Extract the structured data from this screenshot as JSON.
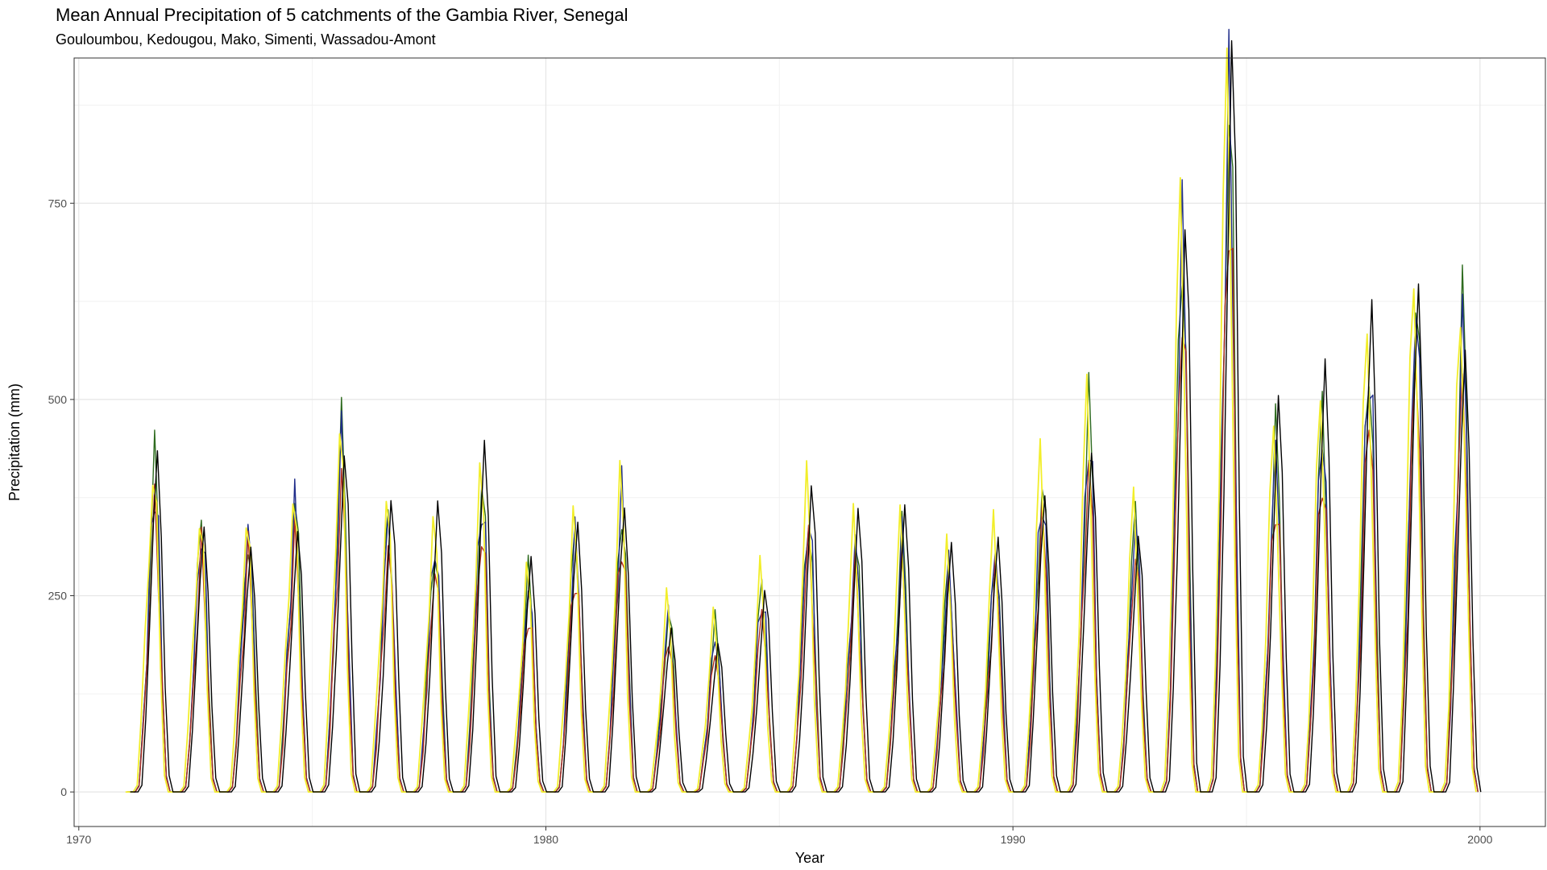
{
  "chart_data": {
    "type": "line",
    "title": "Mean Annual Precipitation of 5 catchments of the Gambia River, Senegal",
    "subtitle": "Gouloumbou, Kedougou, Mako, Simenti, Wassadou-Amont",
    "xlabel": "Year",
    "ylabel": "Precipitation (mm)",
    "xlim": [
      1969.9,
      2001.4
    ],
    "ylim": [
      -44,
      935
    ],
    "x_ticks": [
      1970,
      1980,
      1990,
      2000
    ],
    "x_tick_labels": [
      "1970",
      "1980",
      "1990",
      "2000"
    ],
    "y_ticks": [
      0,
      250,
      500,
      750
    ],
    "y_tick_labels": [
      "0",
      "250",
      "500",
      "750"
    ],
    "grid": true,
    "legend": "none",
    "series_colors": [
      "#2e6b1f",
      "#1f2c8a",
      "#b03020",
      "#f2ee2a",
      "#000000"
    ],
    "annual_peaks": [
      [
        1971,
        420
      ],
      [
        1972,
        355
      ],
      [
        1973,
        350
      ],
      [
        1974,
        375
      ],
      [
        1975,
        458
      ],
      [
        1976,
        365
      ],
      [
        1977,
        340
      ],
      [
        1978,
        400
      ],
      [
        1979,
        275
      ],
      [
        1980,
        338
      ],
      [
        1981,
        387
      ],
      [
        1982,
        236
      ],
      [
        1983,
        212
      ],
      [
        1984,
        270
      ],
      [
        1985,
        377
      ],
      [
        1986,
        328
      ],
      [
        1987,
        327
      ],
      [
        1988,
        295
      ],
      [
        1989,
        325
      ],
      [
        1990,
        410
      ],
      [
        1991,
        490
      ],
      [
        1992,
        362
      ],
      [
        1993,
        740
      ],
      [
        1994,
        910
      ],
      [
        1995,
        455
      ],
      [
        1996,
        495
      ],
      [
        1997,
        590
      ],
      [
        1998,
        660
      ],
      [
        1999,
        620
      ]
    ]
  }
}
